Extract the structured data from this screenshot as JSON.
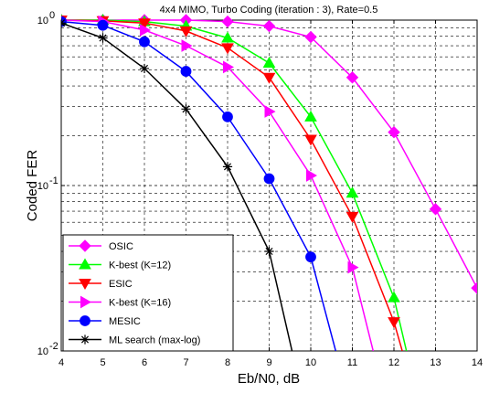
{
  "chart_data": {
    "type": "line",
    "title": "4x4 MIMO, Turbo Coding (iteration : 3), Rate=0.5",
    "xlabel": "Eb/N0, dB",
    "ylabel": "Coded FER",
    "xlim": [
      4,
      14
    ],
    "ylim": [
      0.01,
      1
    ],
    "yscale": "log",
    "grid": true,
    "legend_position": "bottom-left",
    "x_ticks": [
      "4",
      "5",
      "6",
      "7",
      "8",
      "9",
      "10",
      "11",
      "12",
      "13",
      "14"
    ],
    "y_ticks": [
      {
        "base": "10",
        "exp": "0"
      },
      {
        "base": "10",
        "exp": "-1"
      },
      {
        "base": "10",
        "exp": "-2"
      }
    ],
    "series": [
      {
        "name": "OSIC",
        "color": "#ff00ff",
        "marker": "diamond",
        "x": [
          4,
          5,
          6,
          7,
          8,
          9,
          10,
          11,
          12,
          13,
          14
        ],
        "y": [
          1.0,
          1.0,
          1.0,
          1.0,
          0.98,
          0.92,
          0.79,
          0.45,
          0.21,
          0.072,
          0.024
        ]
      },
      {
        "name": "K-best (K=12)",
        "color": "#00ff00",
        "marker": "triangle-up",
        "x": [
          4,
          5,
          6,
          7,
          8,
          9,
          10,
          11,
          12,
          12.3
        ],
        "y": [
          1.0,
          1.0,
          0.98,
          0.92,
          0.78,
          0.55,
          0.26,
          0.09,
          0.021,
          0.01
        ]
      },
      {
        "name": "ESIC",
        "color": "#ff0000",
        "marker": "triangle-down",
        "x": [
          4,
          5,
          6,
          7,
          8,
          9,
          10,
          11,
          12,
          12.2
        ],
        "y": [
          1.0,
          0.99,
          0.96,
          0.86,
          0.68,
          0.45,
          0.19,
          0.065,
          0.015,
          0.01
        ]
      },
      {
        "name": "K-best (K=16)",
        "color": "#ff00ff",
        "marker": "triangle-right",
        "x": [
          4,
          5,
          6,
          7,
          8,
          9,
          10,
          11,
          11.5
        ],
        "y": [
          1.0,
          0.98,
          0.87,
          0.7,
          0.52,
          0.28,
          0.115,
          0.032,
          0.01
        ]
      },
      {
        "name": "MESIC",
        "color": "#0000ff",
        "marker": "circle",
        "x": [
          4,
          5,
          6,
          7,
          8,
          9,
          10,
          10.6
        ],
        "y": [
          0.98,
          0.93,
          0.74,
          0.49,
          0.26,
          0.11,
          0.037,
          0.01
        ]
      },
      {
        "name": "ML search (max-log)",
        "color": "#000000",
        "marker": "star",
        "x": [
          4,
          5,
          6,
          7,
          8,
          9,
          9.55
        ],
        "y": [
          0.96,
          0.78,
          0.51,
          0.29,
          0.13,
          0.04,
          0.01
        ]
      }
    ]
  }
}
